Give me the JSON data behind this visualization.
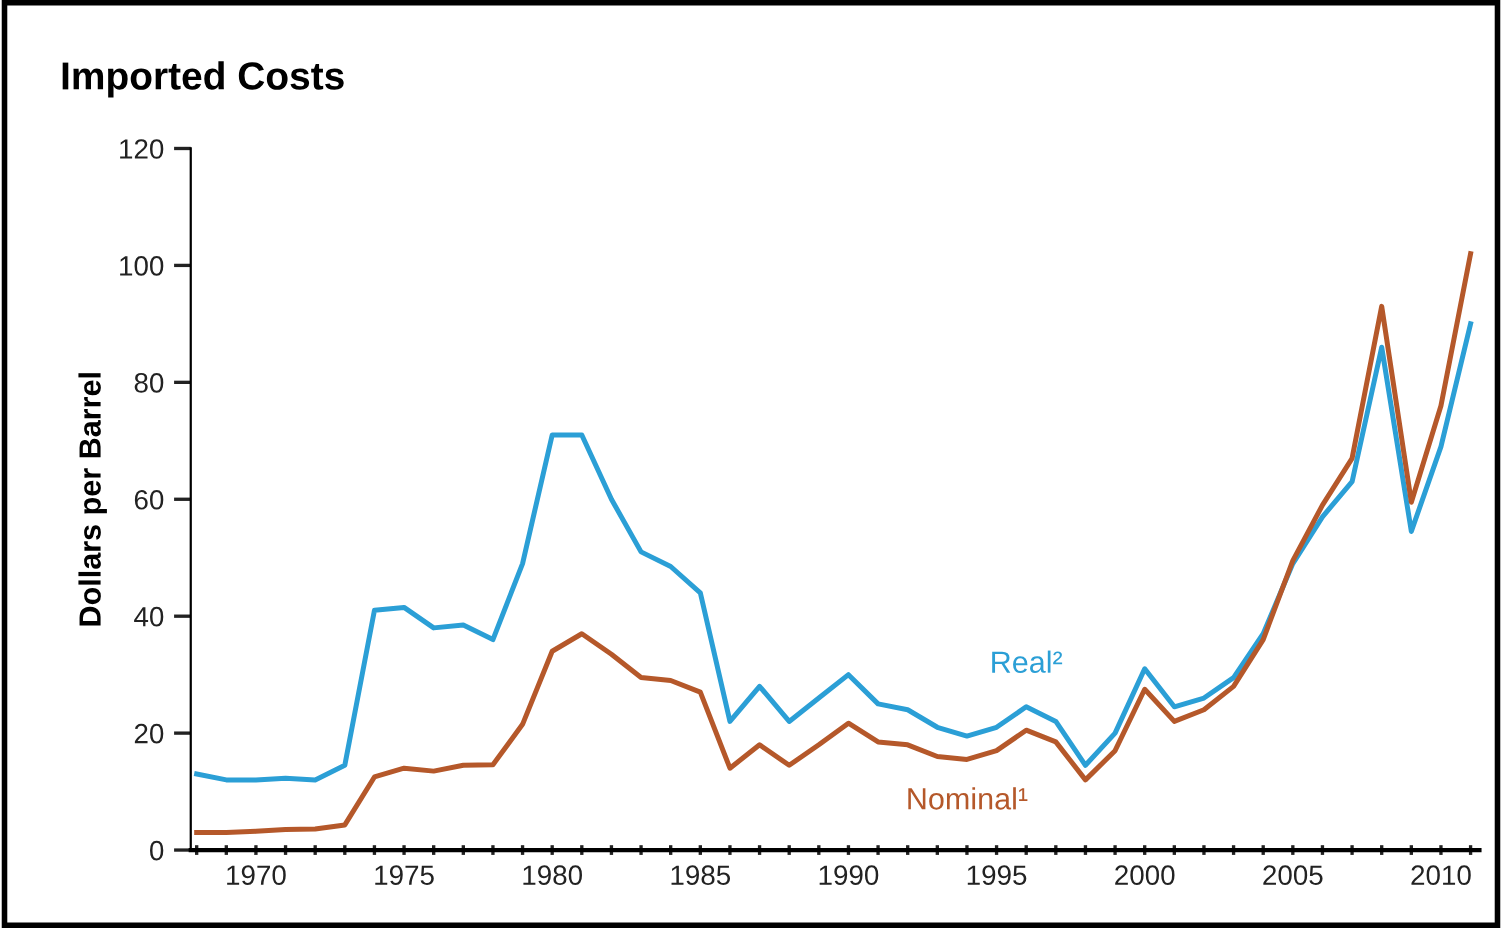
{
  "chart_data": {
    "type": "line",
    "title": "Imported Costs",
    "ylabel": "Dollars per Barrel",
    "x": [
      1968,
      1969,
      1970,
      1971,
      1972,
      1973,
      1974,
      1975,
      1976,
      1977,
      1978,
      1979,
      1980,
      1981,
      1982,
      1983,
      1984,
      1985,
      1986,
      1987,
      1988,
      1989,
      1990,
      1991,
      1992,
      1993,
      1994,
      1995,
      1996,
      1997,
      1998,
      1999,
      2000,
      2001,
      2002,
      2003,
      2004,
      2005,
      2006,
      2007,
      2008,
      2009,
      2010,
      2011
    ],
    "series": [
      {
        "name": "Real²",
        "color": "#2b9fd6",
        "values": [
          13,
          12,
          12,
          12.3,
          12,
          14.5,
          41,
          41.5,
          38,
          38.5,
          36,
          49,
          71,
          71,
          60,
          51,
          48.5,
          44,
          22,
          28,
          22,
          26,
          30,
          25,
          24,
          21,
          19.5,
          21,
          24.5,
          22,
          14.5,
          20,
          31,
          24.5,
          26,
          29.5,
          37,
          49,
          57,
          63,
          86,
          54.5,
          69,
          90
        ]
      },
      {
        "name": "Nominal¹",
        "color": "#b5582a",
        "values": [
          3,
          3,
          3.2,
          3.5,
          3.6,
          4.3,
          12.5,
          14,
          13.5,
          14.5,
          14.6,
          21.5,
          34,
          37,
          33.5,
          29.5,
          29,
          27,
          14,
          18,
          14.5,
          18,
          21.7,
          18.5,
          18,
          16,
          15.5,
          17,
          20.5,
          18.5,
          12,
          17,
          27.5,
          22,
          24,
          28,
          36,
          49.5,
          59,
          67,
          93,
          59.5,
          76,
          102
        ]
      }
    ],
    "xlim": [
      1967.8,
      2011.3
    ],
    "xticks": [
      {
        "value": 1968,
        "label": null
      },
      {
        "value": 1969,
        "label": null
      },
      1970,
      {
        "value": 1971,
        "label": null
      },
      {
        "value": 1972,
        "label": null
      },
      {
        "value": 1973,
        "label": null
      },
      {
        "value": 1974,
        "label": null
      },
      1975,
      {
        "value": 1976,
        "label": null
      },
      {
        "value": 1977,
        "label": null
      },
      {
        "value": 1978,
        "label": null
      },
      {
        "value": 1979,
        "label": null
      },
      1980,
      {
        "value": 1981,
        "label": null
      },
      {
        "value": 1982,
        "label": null
      },
      {
        "value": 1983,
        "label": null
      },
      {
        "value": 1984,
        "label": null
      },
      1985,
      {
        "value": 1986,
        "label": null
      },
      {
        "value": 1987,
        "label": null
      },
      {
        "value": 1988,
        "label": null
      },
      {
        "value": 1989,
        "label": null
      },
      1990,
      {
        "value": 1991,
        "label": null
      },
      {
        "value": 1992,
        "label": null
      },
      {
        "value": 1993,
        "label": null
      },
      {
        "value": 1994,
        "label": null
      },
      1995,
      {
        "value": 1996,
        "label": null
      },
      {
        "value": 1997,
        "label": null
      },
      {
        "value": 1998,
        "label": null
      },
      {
        "value": 1999,
        "label": null
      },
      2000,
      {
        "value": 2001,
        "label": null
      },
      {
        "value": 2002,
        "label": null
      },
      {
        "value": 2003,
        "label": null
      },
      {
        "value": 2004,
        "label": null
      },
      2005,
      {
        "value": 2006,
        "label": null
      },
      {
        "value": 2007,
        "label": null
      },
      {
        "value": 2008,
        "label": null
      },
      {
        "value": 2009,
        "label": null
      },
      2010,
      {
        "value": 2011,
        "label": null
      }
    ],
    "ylim": [
      0,
      120
    ],
    "yticks": [
      0,
      20,
      40,
      60,
      80,
      100,
      120
    ],
    "grid": false,
    "legend": false,
    "marker": "none",
    "line_style": "solid"
  }
}
